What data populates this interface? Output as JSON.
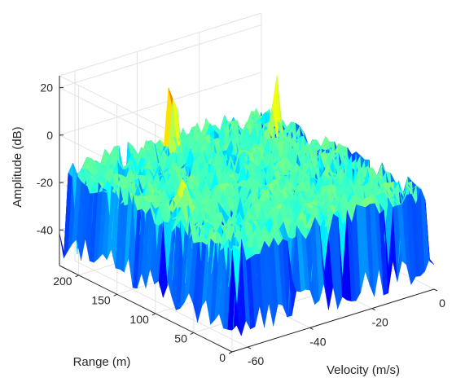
{
  "chart_data": {
    "type": "surface",
    "title": "",
    "xlabel": "Velocity (m/s)",
    "ylabel": "Range (m)",
    "zlabel": "Amplitude (dB)",
    "x_ticks": [
      -60,
      -40,
      -20,
      0
    ],
    "y_ticks": [
      0,
      50,
      100,
      150,
      200
    ],
    "z_ticks": [
      -40,
      -20,
      0,
      20
    ],
    "xlim": [
      -65,
      0
    ],
    "ylim": [
      0,
      225
    ],
    "zlim": [
      -55,
      25
    ],
    "grid": true,
    "colormap": "jet",
    "noise_floor_db": -15,
    "peaks": [
      {
        "velocity": -35,
        "range": 200,
        "amplitude": 22
      },
      {
        "velocity": -9,
        "range": 170,
        "amplitude": 13
      },
      {
        "velocity": -56,
        "range": 100,
        "amplitude": 1
      }
    ]
  }
}
